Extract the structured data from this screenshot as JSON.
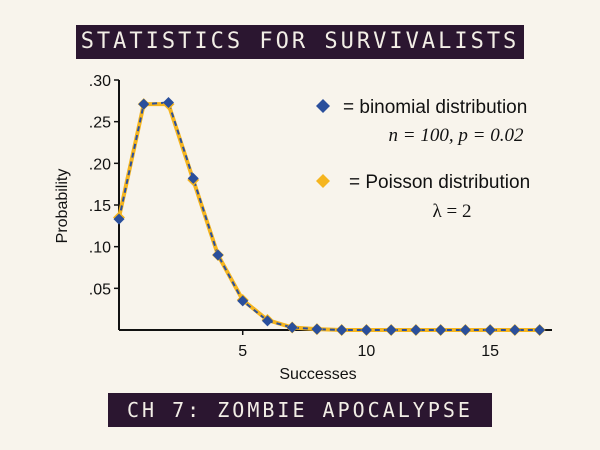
{
  "header": {
    "title": "STATISTICS FOR SURVIVALISTS"
  },
  "footer": {
    "subtitle": "CH 7: ZOMBIE APOCALYPSE"
  },
  "chart_data": {
    "type": "line",
    "xlabel": "Successes",
    "ylabel": "Probability",
    "xlim": [
      0,
      17.5
    ],
    "ylim": [
      0,
      0.3
    ],
    "xticks": [
      5,
      10,
      15
    ],
    "xtick_labels": [
      "5",
      "10",
      "15"
    ],
    "yticks": [
      0.05,
      0.1,
      0.15,
      0.2,
      0.25,
      0.3
    ],
    "ytick_labels": [
      ".05",
      ".10",
      ".15",
      ".20",
      ".25",
      ".30"
    ],
    "grid": false,
    "legend_position": "top-right",
    "x": [
      0,
      1,
      2,
      3,
      4,
      5,
      6,
      7,
      8,
      9,
      10,
      11,
      12,
      13,
      14,
      15,
      16,
      17
    ],
    "series": [
      {
        "name": "= binomial distribution",
        "parameters": "n = 100, p = 0.02",
        "color": "#2a4f9c",
        "marker": "diamond",
        "values": [
          0.133,
          0.271,
          0.273,
          0.182,
          0.09,
          0.035,
          0.011,
          0.003,
          0.001,
          0.0,
          0.0,
          0.0,
          0.0,
          0.0,
          0.0,
          0.0,
          0.0,
          0.0
        ]
      },
      {
        "name": "= Poisson distribution",
        "parameters": "λ = 2",
        "color": "#f5b51f",
        "marker": "diamond",
        "values": [
          0.135,
          0.271,
          0.271,
          0.18,
          0.09,
          0.036,
          0.012,
          0.003,
          0.001,
          0.0,
          0.0,
          0.0,
          0.0,
          0.0,
          0.0,
          0.0,
          0.0,
          0.0
        ]
      }
    ]
  }
}
